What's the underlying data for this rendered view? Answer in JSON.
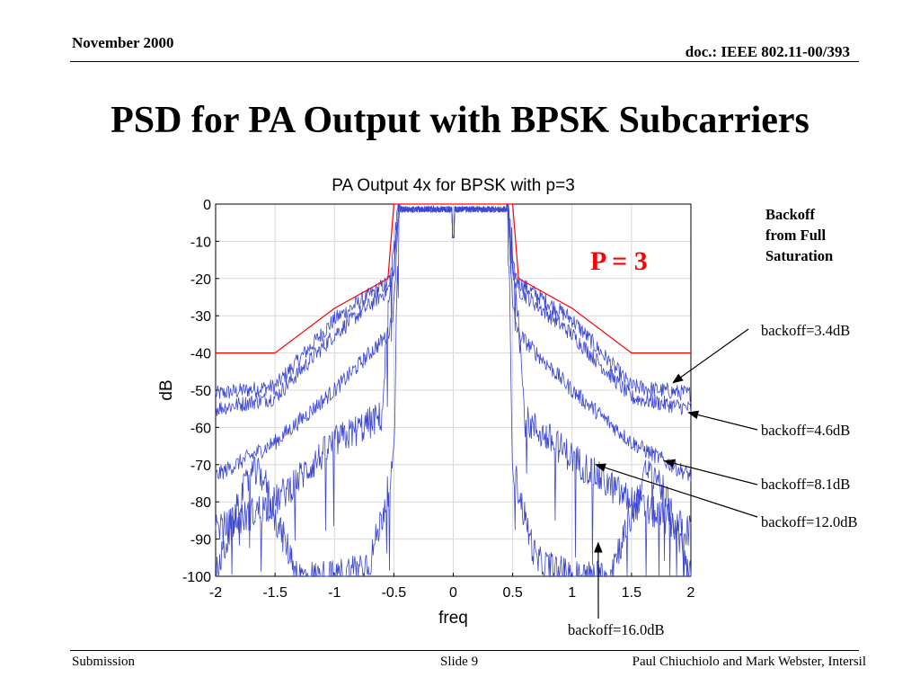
{
  "header": {
    "date": "November 2000",
    "doc_id": "doc.: IEEE 802.11-00/393"
  },
  "slide": {
    "title": "PSD for PA Output with BPSK Subcarriers",
    "p_label": "P = 3",
    "backoff_note": [
      "Backoff",
      "from Full",
      "Saturation"
    ]
  },
  "chart_data": {
    "type": "line",
    "title": "PA Output 4x for BPSK with p=3",
    "xlabel": "freq",
    "ylabel": "dB",
    "xlim": [
      -2,
      2
    ],
    "ylim": [
      -100,
      0
    ],
    "xticks": [
      "-2",
      "-1.5",
      "-1",
      "-0.5",
      "0",
      "0.5",
      "1",
      "1.5",
      "2"
    ],
    "yticks": [
      "0",
      "-10",
      "-20",
      "-30",
      "-40",
      "-50",
      "-60",
      "-70",
      "-80",
      "-90",
      "-100"
    ],
    "grid": true,
    "spectral_mask": {
      "color": "#ff0000",
      "x": [
        -2,
        -1.5,
        -1,
        -0.55,
        -0.5,
        -0.45,
        0.45,
        0.5,
        0.55,
        1,
        1.5,
        2
      ],
      "y": [
        -40,
        -40,
        -28,
        -20,
        0,
        0,
        0,
        0,
        -20,
        -28,
        -40,
        -40
      ]
    },
    "series": [
      {
        "x": [
          -2,
          -1.5,
          -1,
          -0.55,
          -0.5,
          -0.46,
          0.46,
          0.5,
          0.55,
          1,
          1.5,
          2
        ],
        "y": [
          -51,
          -49,
          -31,
          -21,
          -17,
          0,
          0,
          -17,
          -21,
          -31,
          -49,
          -51
        ]
      },
      {
        "x": [
          -2,
          -1.5,
          -1,
          -0.55,
          -0.5,
          -0.46,
          0.46,
          0.5,
          0.55,
          1,
          1.5,
          2
        ],
        "y": [
          -55,
          -52,
          -35,
          -23,
          -19,
          0,
          0,
          -19,
          -23,
          -35,
          -52,
          -55
        ]
      },
      {
        "x": [
          -2,
          -1.5,
          -1,
          -0.55,
          -0.5,
          -0.46,
          0.46,
          0.5,
          0.55,
          1,
          1.5,
          2
        ],
        "y": [
          -73,
          -64,
          -50,
          -35,
          -28,
          0,
          0,
          -28,
          -35,
          -50,
          -64,
          -73
        ]
      },
      {
        "x": [
          -2,
          -1.5,
          -1,
          -0.6,
          -0.55,
          -0.46,
          0.46,
          0.55,
          0.6,
          1,
          1.5,
          2
        ],
        "y": [
          -88,
          -80,
          -64,
          -57,
          -30,
          0,
          0,
          -30,
          -58,
          -68,
          -80,
          -88
        ]
      },
      {
        "x": [
          -2,
          -1.8,
          -1.7,
          -1.6,
          -1.5,
          -1.3,
          -1,
          -0.7,
          -0.6,
          -0.5,
          -0.46,
          0.46,
          0.5,
          0.6,
          0.7,
          1,
          1.3,
          1.5,
          1.6,
          1.7,
          1.8,
          2
        ],
        "y": [
          -100,
          -80,
          -72,
          -73,
          -84,
          -100,
          -100,
          -96,
          -84,
          -70,
          0,
          0,
          -70,
          -84,
          -96,
          -100,
          -100,
          -84,
          -73,
          -72,
          -80,
          -100
        ]
      }
    ],
    "series_color": "#3c46d2",
    "annotations": [
      {
        "label": "backoff=3.4dB",
        "x": 1.85,
        "y": -48
      },
      {
        "label": "backoff=4.6dB",
        "x": 1.98,
        "y": -56
      },
      {
        "label": "backoff=8.1dB",
        "x": 1.78,
        "y": -69
      },
      {
        "label": "backoff=12.0dB",
        "x": 1.2,
        "y": -70
      },
      {
        "label": "backoff=16.0dB",
        "x": 1.22,
        "y": -91
      }
    ]
  },
  "footer": {
    "left": "Submission",
    "center": "Slide 9",
    "right": "Paul Chiuchiolo and Mark Webster, Intersil"
  }
}
